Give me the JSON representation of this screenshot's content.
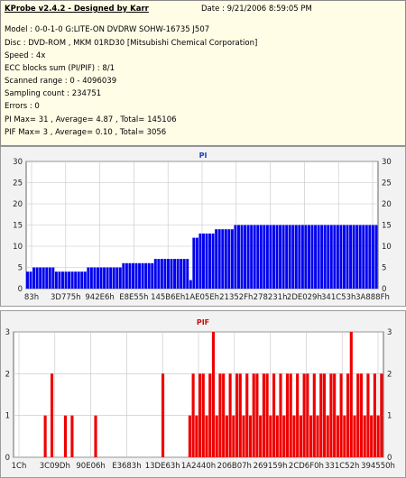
{
  "info": {
    "title": "KProbe v2.4.2 - Designed by Karr",
    "date": "Date : 9/21/2006 8:59:05 PM",
    "lines": [
      "Model : 0-0-1-0 G:LITE-ON DVDRW SOHW-16735 J507",
      "Disc : DVD-ROM , MKM 01RD30   [Mitsubishi Chemical Corporation]",
      "Speed : 4x",
      "ECC blocks sum (PI/PIF) : 8/1",
      "Scanned range : 0 - 4096039",
      "Sampling count : 234751",
      "Errors : 0",
      "PI Max= 31 , Average= 4.87 , Total= 145106",
      "PIF Max= 3 , Average= 0.10 , Total= 3056"
    ]
  },
  "colors": {
    "pi": "#0000ee",
    "pif": "#ee0000",
    "grid": "#c4c4c4",
    "panel": "#f2f2f2",
    "info_bg": "#fffde6"
  },
  "chart_data": [
    {
      "type": "bar",
      "title": "PI",
      "ylim": [
        0,
        30
      ],
      "yticks": [
        0,
        5,
        10,
        15,
        20,
        25,
        30
      ],
      "xticks": [
        "83h",
        "3D775h",
        "942E6h",
        "E8E55h",
        "145B6Eh",
        "1AE05Eh",
        "21352Fh",
        "278231h",
        "2DE029h",
        "341C53h",
        "3A888Fh"
      ],
      "series": [
        {
          "name": "PI",
          "values": [
            4,
            4,
            5,
            5,
            5,
            5,
            5,
            5,
            5,
            4,
            4,
            4,
            4,
            4,
            4,
            4,
            4,
            4,
            4,
            5,
            5,
            5,
            5,
            5,
            5,
            5,
            5,
            5,
            5,
            5,
            6,
            6,
            6,
            6,
            6,
            6,
            6,
            6,
            6,
            6,
            7,
            7,
            7,
            7,
            7,
            7,
            7,
            7,
            7,
            7,
            7,
            2,
            12,
            12,
            13,
            13,
            13,
            13,
            13,
            14,
            14,
            14,
            14,
            14,
            14,
            15,
            15,
            15,
            15,
            15,
            15,
            15,
            15,
            15,
            15,
            15,
            15,
            15,
            15,
            15,
            15,
            15,
            15,
            15,
            15,
            15,
            15,
            15,
            15,
            15,
            15,
            15,
            15,
            15,
            15,
            15,
            15,
            15,
            15,
            15,
            15,
            15,
            15,
            15,
            15,
            15,
            15,
            15,
            15,
            15
          ]
        }
      ]
    },
    {
      "type": "bar",
      "title": "PIF",
      "ylim": [
        0,
        3
      ],
      "yticks": [
        0,
        1,
        2,
        3
      ],
      "xticks": [
        "1Ch",
        "3C09Dh",
        "90E06h",
        "E3683h",
        "13DE63h",
        "1A2440h",
        "206B07h",
        "269159h",
        "2CD6F0h",
        "331C52h",
        "394550h"
      ],
      "series": [
        {
          "name": "PIF",
          "values": [
            0,
            0,
            0,
            0,
            0,
            0,
            0,
            0,
            0,
            1,
            0,
            2,
            0,
            0,
            0,
            1,
            0,
            1,
            0,
            0,
            0,
            0,
            0,
            0,
            1,
            0,
            0,
            0,
            0,
            0,
            0,
            0,
            0,
            0,
            0,
            0,
            0,
            0,
            0,
            0,
            0,
            0,
            0,
            0,
            2,
            0,
            0,
            0,
            0,
            0,
            0,
            0,
            1,
            2,
            1,
            2,
            2,
            1,
            2,
            3,
            1,
            2,
            2,
            1,
            2,
            1,
            2,
            2,
            1,
            2,
            1,
            2,
            2,
            1,
            2,
            2,
            1,
            2,
            1,
            2,
            1,
            2,
            2,
            1,
            2,
            1,
            2,
            2,
            1,
            2,
            1,
            2,
            2,
            1,
            2,
            2,
            1,
            2,
            1,
            2,
            3,
            1,
            2,
            2,
            1,
            2,
            1,
            2,
            1,
            2
          ]
        }
      ]
    }
  ]
}
